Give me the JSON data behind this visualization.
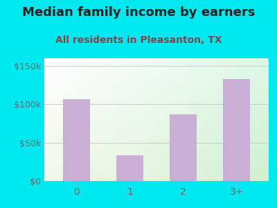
{
  "title": "Median family income by earners",
  "subtitle": "All residents in Pleasanton, TX",
  "categories": [
    "0",
    "1",
    "2",
    "3+"
  ],
  "values": [
    107000,
    33000,
    87000,
    133000
  ],
  "bar_color": "#c9aed6",
  "title_color": "#222222",
  "subtitle_color": "#7a4a4a",
  "background_outer": "#00e8f0",
  "yticks": [
    0,
    50000,
    100000,
    150000
  ],
  "ytick_labels": [
    "$0",
    "$50k",
    "$100k",
    "$150k"
  ],
  "ylim": [
    0,
    160000
  ],
  "title_fontsize": 13,
  "subtitle_fontsize": 10
}
